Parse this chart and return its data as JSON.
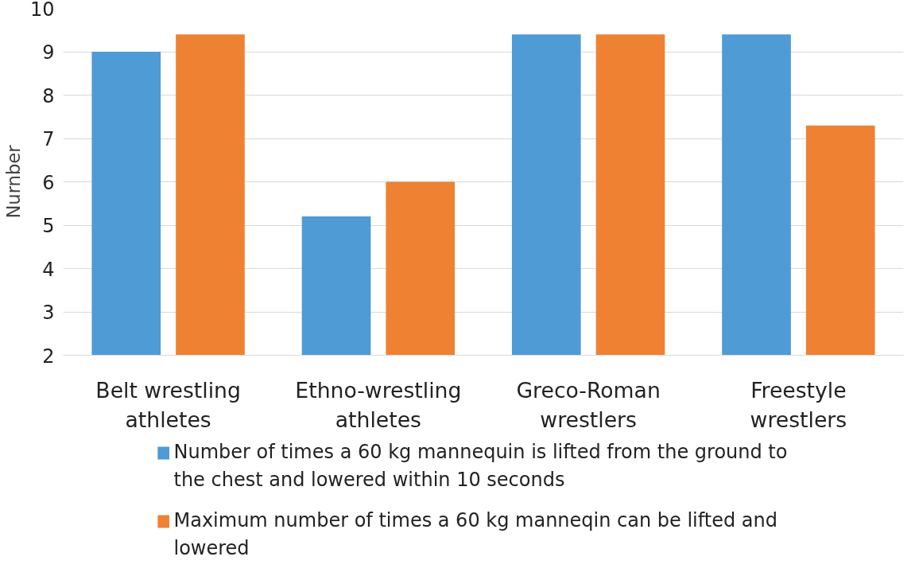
{
  "chart_data": {
    "type": "bar",
    "ylabel": "Nurnber",
    "categories": [
      "Belt wrestling athletes",
      "Ethno-wrestling athletes",
      "Greco-Roman wrestlers",
      "Freestyle wrestlers"
    ],
    "series": [
      {
        "name": "Number of times a 60 kg mannequin is lifted from the ground to the chest and lowered within 10 seconds",
        "color": "#4e9bd6",
        "values": [
          9.0,
          5.2,
          9.4,
          9.4
        ]
      },
      {
        "name": "Maximum number of times a 60 kg manneqin can be lifted and lowered",
        "color": "#ee8232",
        "values": [
          9.4,
          6.0,
          9.4,
          7.3
        ]
      }
    ],
    "ylim": [
      2,
      10
    ],
    "yticks": [
      2,
      3,
      4,
      5,
      6,
      7,
      8,
      9,
      10
    ],
    "grid": "y",
    "legend": "bottom"
  }
}
